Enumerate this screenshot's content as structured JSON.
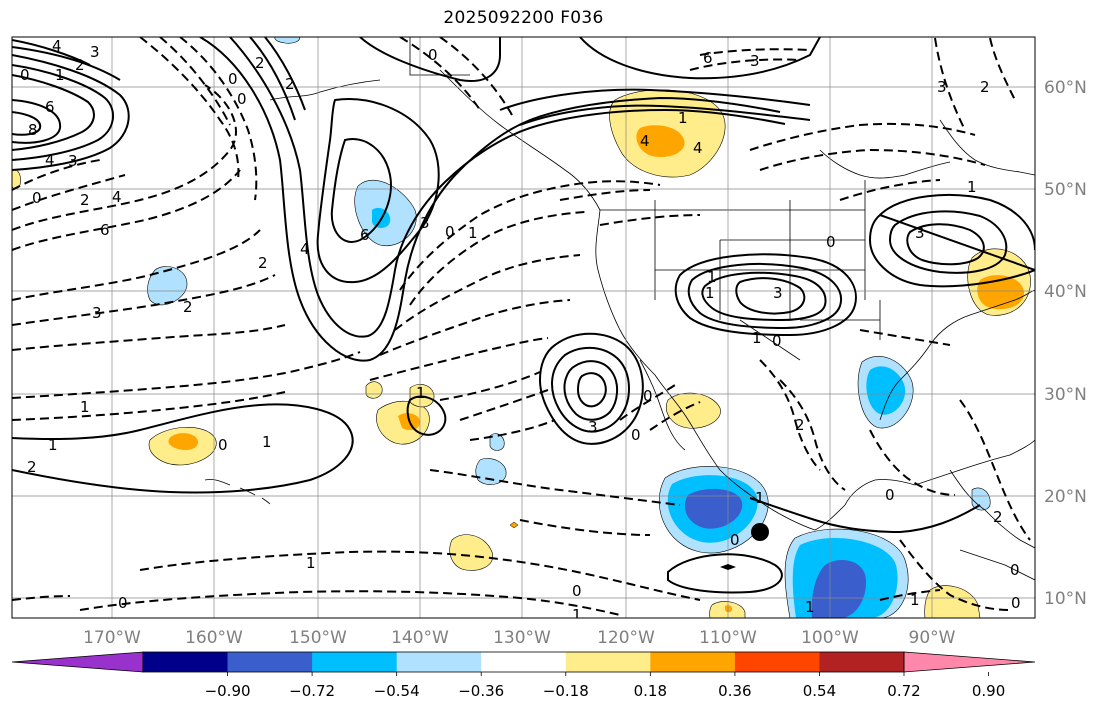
{
  "title": "2025092200 F036",
  "lat_labels": [
    "60°N",
    "50°N",
    "40°N",
    "30°N",
    "20°N",
    "10°N"
  ],
  "lon_labels": [
    "170°W",
    "160°W",
    "150°W",
    "140°W",
    "130°W",
    "120°W",
    "110°W",
    "100°W",
    "90°W"
  ],
  "colorbar": {
    "colors": [
      "#9932cc",
      "#00008b",
      "#3a5fcd",
      "#00bfff",
      "#b0e2ff",
      "#ffffff",
      "#ffec8b",
      "#ffa500",
      "#ff4500",
      "#b22222",
      "#ff88aa"
    ],
    "tick_labels": [
      "−0.90",
      "−0.72",
      "−0.54",
      "−0.36",
      "−0.18",
      "0.18",
      "0.36",
      "0.54",
      "0.72",
      "0.90"
    ]
  },
  "contour_labels": [
    "4",
    "3",
    "2",
    "1",
    "0",
    "6",
    "8",
    "4",
    "3",
    "0",
    "2",
    "4",
    "6",
    "2",
    "3",
    "2",
    "1",
    "1",
    "0",
    "1",
    "2",
    "4",
    "6",
    "3",
    "0",
    "1",
    "2",
    "0",
    "0",
    "2",
    "4",
    "6",
    "4",
    "3",
    "1",
    "0",
    "3",
    "2",
    "1",
    "3",
    "3",
    "3",
    "0",
    "1",
    "0",
    "0",
    "1",
    "0",
    "1",
    "0",
    "1",
    "2",
    "0",
    "1",
    "0",
    "1",
    "0",
    "1",
    "2",
    "1",
    "0",
    "1",
    "0"
  ]
}
